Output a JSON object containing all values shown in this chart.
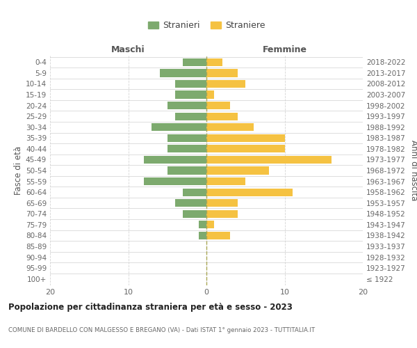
{
  "age_groups": [
    "100+",
    "95-99",
    "90-94",
    "85-89",
    "80-84",
    "75-79",
    "70-74",
    "65-69",
    "60-64",
    "55-59",
    "50-54",
    "45-49",
    "40-44",
    "35-39",
    "30-34",
    "25-29",
    "20-24",
    "15-19",
    "10-14",
    "5-9",
    "0-4"
  ],
  "birth_years": [
    "≤ 1922",
    "1923-1927",
    "1928-1932",
    "1933-1937",
    "1938-1942",
    "1943-1947",
    "1948-1952",
    "1953-1957",
    "1958-1962",
    "1963-1967",
    "1968-1972",
    "1973-1977",
    "1978-1982",
    "1983-1987",
    "1988-1992",
    "1993-1997",
    "1998-2002",
    "2003-2007",
    "2008-2012",
    "2013-2017",
    "2018-2022"
  ],
  "males": [
    0,
    0,
    0,
    0,
    1,
    1,
    3,
    4,
    3,
    8,
    5,
    8,
    5,
    5,
    7,
    4,
    5,
    4,
    4,
    6,
    3
  ],
  "females": [
    0,
    0,
    0,
    0,
    3,
    1,
    4,
    4,
    11,
    5,
    8,
    16,
    10,
    10,
    6,
    4,
    3,
    1,
    5,
    4,
    2
  ],
  "male_color": "#7daa6e",
  "female_color": "#f5c242",
  "title": "Popolazione per cittadinanza straniera per età e sesso - 2023",
  "subtitle": "COMUNE DI BARDELLO CON MALGESSO E BREGANO (VA) - Dati ISTAT 1° gennaio 2023 - TUTTITALIA.IT",
  "xlabel_left": "Maschi",
  "xlabel_right": "Femmine",
  "ylabel_left": "Fasce di età",
  "ylabel_right": "Anni di nascita",
  "legend_male": "Stranieri",
  "legend_female": "Straniere",
  "xlim": 20,
  "background_color": "#ffffff",
  "grid_color": "#d0d0d0"
}
